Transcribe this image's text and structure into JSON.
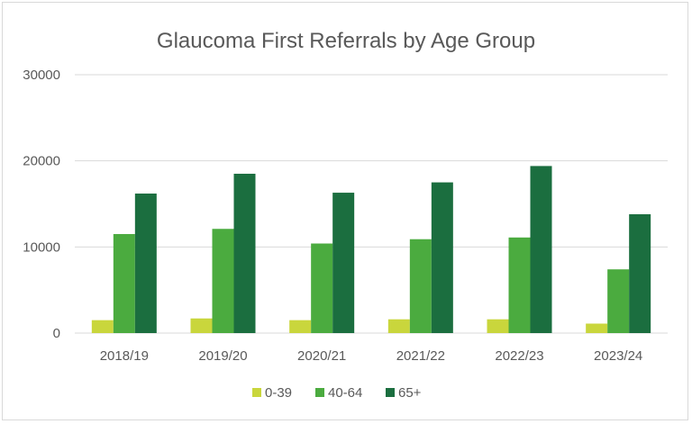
{
  "chart_data": {
    "type": "bar",
    "title": "Glaucoma First Referrals by Age Group",
    "xlabel": "",
    "ylabel": "",
    "categories": [
      "2018/19",
      "2019/20",
      "2020/21",
      "2021/22",
      "2022/23",
      "2023/24"
    ],
    "series": [
      {
        "name": "0-39",
        "color": "#c9d63c",
        "values": [
          1500,
          1700,
          1500,
          1600,
          1600,
          1100
        ]
      },
      {
        "name": "40-64",
        "color": "#4bab3f",
        "values": [
          11500,
          12100,
          10400,
          10900,
          11100,
          7400
        ]
      },
      {
        "name": "65+",
        "color": "#1b6e3f",
        "values": [
          16200,
          18500,
          16300,
          17500,
          19400,
          13800
        ]
      }
    ],
    "ylim": [
      0,
      30000
    ],
    "yticks": [
      "0",
      "10000",
      "20000",
      "30000"
    ],
    "grid": true,
    "legend_position": "bottom"
  }
}
